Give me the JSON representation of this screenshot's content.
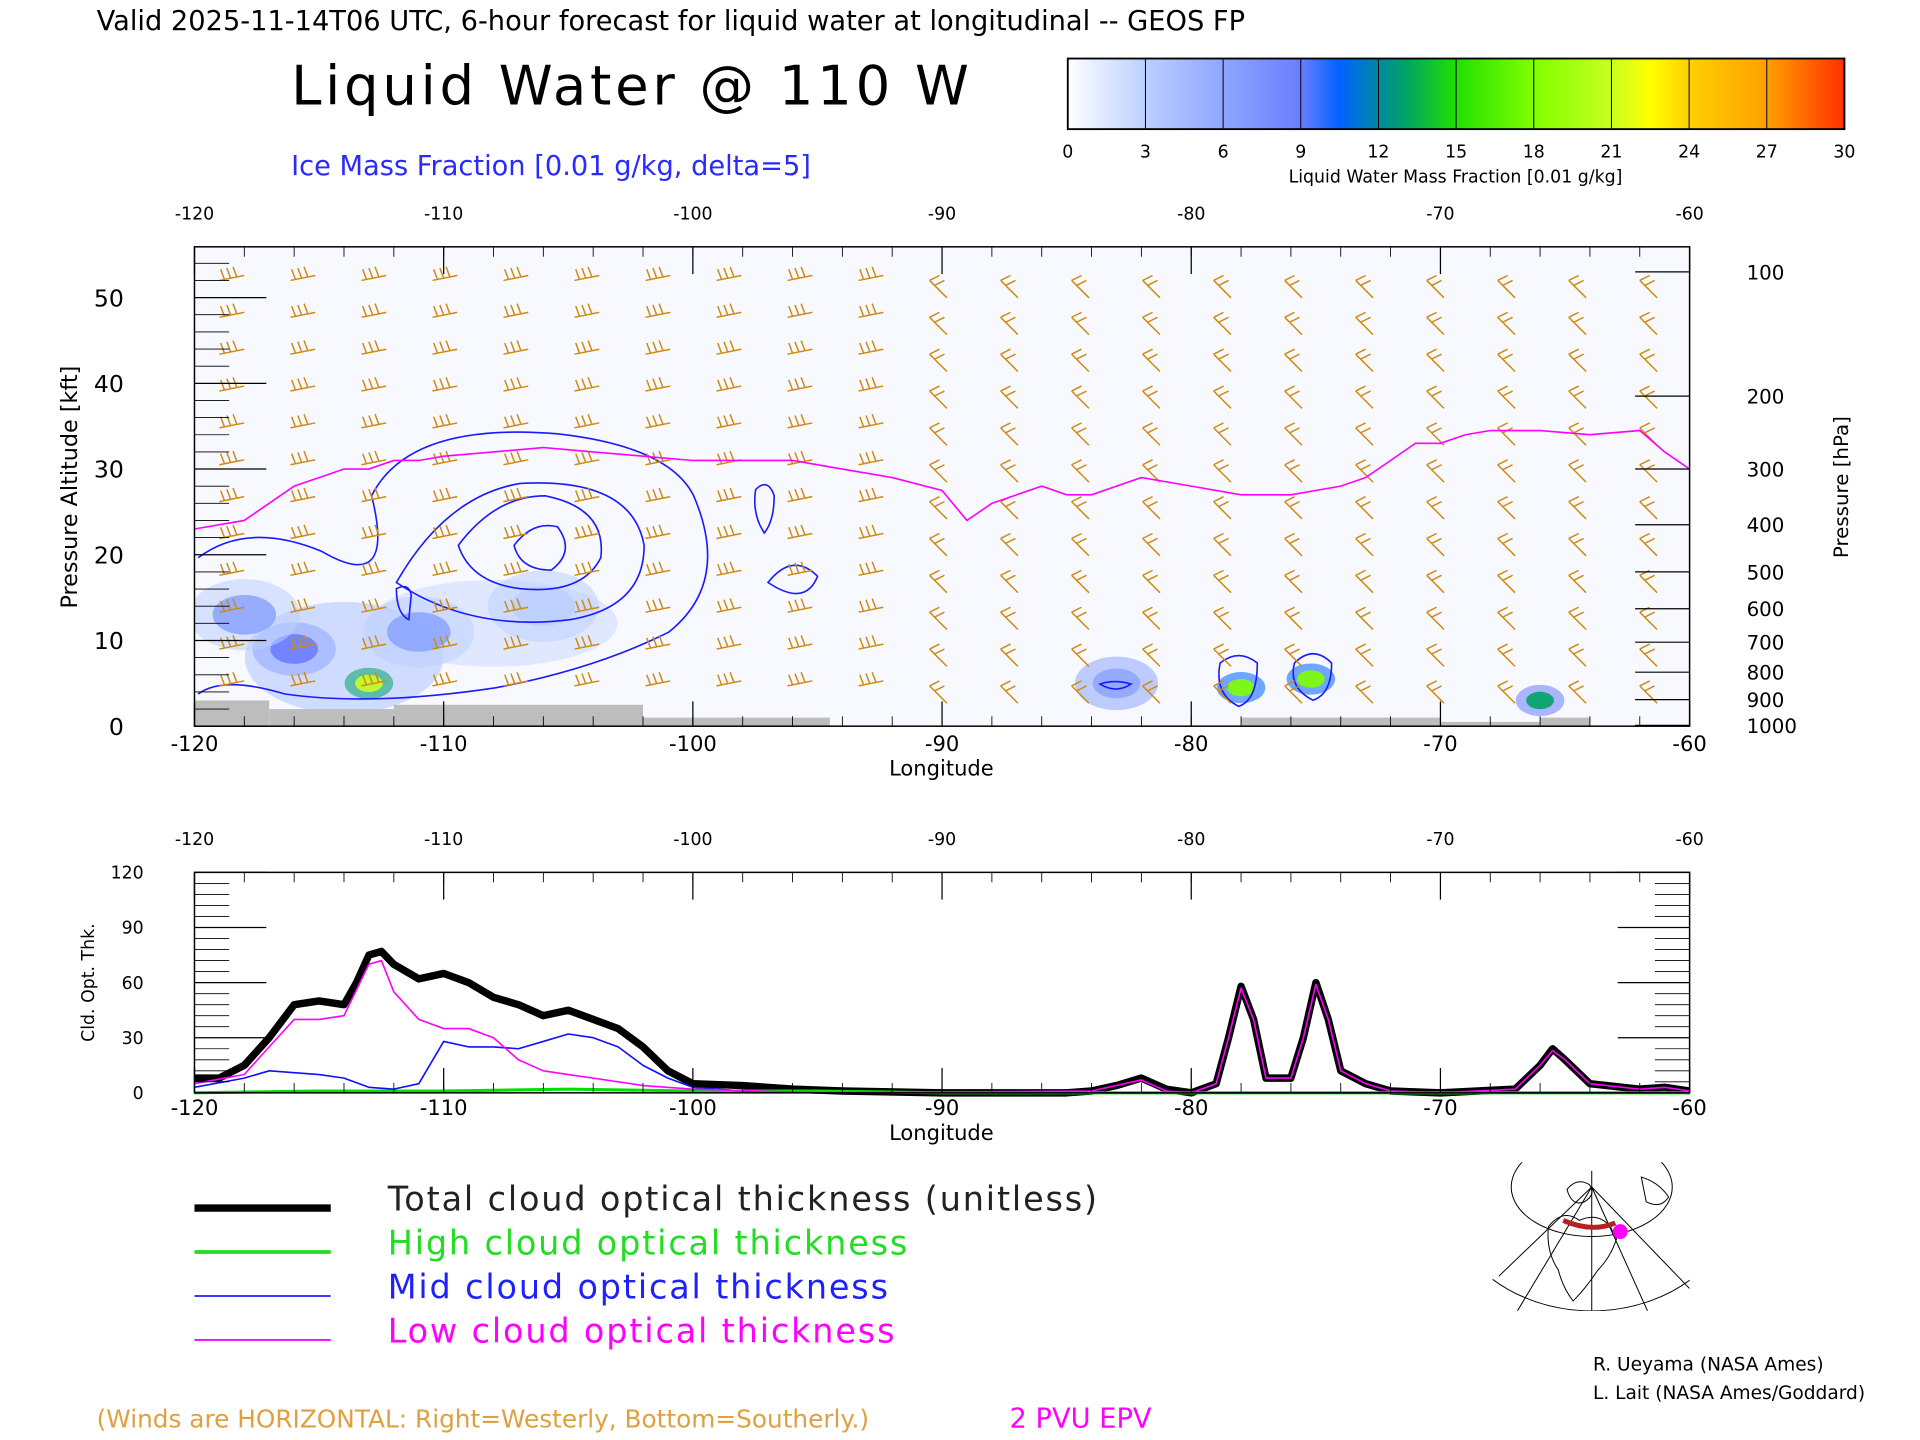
{
  "header": {
    "valid_line": "Valid 2025-11-14T06 UTC, 6-hour forecast for liquid water at longitudinal -- GEOS FP",
    "title": "Liquid Water @ 110 W",
    "ice_label": "Ice Mass Fraction [0.01 g/kg, delta=5]"
  },
  "colorbar": {
    "ticks": [
      "0",
      "3",
      "6",
      "9",
      "12",
      "15",
      "18",
      "21",
      "24",
      "27",
      "30"
    ],
    "label": "Liquid Water Mass Fraction [0.01 g/kg]",
    "stops": [
      {
        "v": 0,
        "c": "#ffffff"
      },
      {
        "v": 3,
        "c": "#bccfff"
      },
      {
        "v": 6,
        "c": "#8ea6ff"
      },
      {
        "v": 9,
        "c": "#6b7dff"
      },
      {
        "v": 10.5,
        "c": "#0062ff"
      },
      {
        "v": 13,
        "c": "#00a266"
      },
      {
        "v": 15,
        "c": "#22e000"
      },
      {
        "v": 18,
        "c": "#80ff00"
      },
      {
        "v": 21,
        "c": "#c8ff20"
      },
      {
        "v": 22.5,
        "c": "#ffff00"
      },
      {
        "v": 24,
        "c": "#ffd000"
      },
      {
        "v": 27,
        "c": "#ffa000"
      },
      {
        "v": 30,
        "c": "#ff3000"
      }
    ]
  },
  "chart_data": [
    {
      "type": "heatmap",
      "title": "Liquid Water @ 110 W",
      "xlabel": "Longitude",
      "ylabel": "Pressure Altitude [kft]",
      "y2label": "Pressure [hPa]",
      "xlim": [
        -120,
        -60
      ],
      "ylim": [
        0,
        55
      ],
      "xticks": [
        "-120",
        "-110",
        "-100",
        "-90",
        "-80",
        "-70",
        "-60"
      ],
      "yticks": [
        "0",
        "10",
        "20",
        "30",
        "40",
        "50"
      ],
      "pressure_ticks": [
        {
          "label": "100",
          "kft": 53
        },
        {
          "label": "200",
          "kft": 38.5
        },
        {
          "label": "300",
          "kft": 30
        },
        {
          "label": "400",
          "kft": 23.5
        },
        {
          "label": "500",
          "kft": 18
        },
        {
          "label": "600",
          "kft": 13.7
        },
        {
          "label": "700",
          "kft": 9.8
        },
        {
          "label": "800",
          "kft": 6.3
        },
        {
          "label": "900",
          "kft": 3.1
        },
        {
          "label": "1000",
          "kft": 0.1
        }
      ],
      "liquid_water_blobs": [
        {
          "lon": -113,
          "kft": 5,
          "value": 20
        },
        {
          "lon": -116,
          "kft": 9,
          "value": 7
        },
        {
          "lon": -118,
          "kft": 13,
          "value": 4
        },
        {
          "lon": -111,
          "kft": 11,
          "value": 5
        },
        {
          "lon": -106,
          "kft": 14,
          "value": 3
        },
        {
          "lon": -78,
          "kft": 4.5,
          "value": 17
        },
        {
          "lon": -75.2,
          "kft": 5.5,
          "value": 16
        },
        {
          "lon": -66,
          "kft": 3,
          "value": 13
        },
        {
          "lon": -83,
          "kft": 5,
          "value": 6
        }
      ],
      "epv_2pvu_line": {
        "lon": [
          -120,
          -118,
          -117,
          -116,
          -115,
          -114,
          -113,
          -112,
          -111,
          -110,
          -108,
          -106,
          -104,
          -102,
          -100,
          -98,
          -96,
          -94,
          -92,
          -90,
          -89,
          -88,
          -86,
          -85,
          -84,
          -82,
          -80,
          -78,
          -76,
          -74,
          -73,
          -72,
          -71,
          -70,
          -69,
          -68,
          -66,
          -64,
          -62,
          -61,
          -60
        ],
        "kft": [
          23,
          24,
          26,
          28,
          29,
          30,
          30,
          31,
          31,
          31.5,
          32,
          32.5,
          32,
          31.5,
          31,
          31,
          31,
          30,
          29,
          27.5,
          24,
          26,
          28,
          27,
          27,
          29,
          28,
          27,
          27,
          28,
          29,
          31,
          33,
          33,
          34,
          34.5,
          34.5,
          34,
          34.5,
          32,
          30
        ]
      },
      "ground_kft": [
        {
          "from": -120,
          "to": -117,
          "value": 3
        },
        {
          "from": -117,
          "to": -112,
          "value": 2
        },
        {
          "from": -112,
          "to": -102,
          "value": 2.5
        },
        {
          "from": -102,
          "to": -94.5,
          "value": 1
        },
        {
          "from": -78,
          "to": -70,
          "value": 1
        },
        {
          "from": -70,
          "to": -66,
          "value": 0.5
        },
        {
          "from": -66,
          "to": -64,
          "value": 1
        }
      ]
    },
    {
      "type": "line",
      "xlabel": "Longitude",
      "ylabel": "Cld. Opt. Thk.",
      "xlim": [
        -120,
        -60
      ],
      "ylim": [
        0,
        120
      ],
      "xticks": [
        "-120",
        "-110",
        "-100",
        "-90",
        "-80",
        "-70",
        "-60"
      ],
      "yticks": [
        "0",
        "30",
        "60",
        "90",
        "120"
      ],
      "series": [
        {
          "name": "Total cloud optical thickness (unitless)",
          "color": "#000000",
          "x": [
            -120,
            -119,
            -118,
            -117,
            -116,
            -115,
            -114,
            -113.5,
            -113,
            -112.5,
            -112,
            -111,
            -110,
            -109,
            -108,
            -107,
            -106,
            -105,
            -104,
            -103,
            -102,
            -101,
            -100,
            -98,
            -96,
            -94,
            -90,
            -85,
            -84,
            -83,
            -82,
            -81,
            -80,
            -79,
            -78.5,
            -78,
            -77.5,
            -77,
            -76,
            -75.5,
            -75,
            -74.5,
            -74,
            -73,
            -72,
            -70,
            -67,
            -66,
            -65.5,
            -65,
            -64,
            -62,
            -61,
            -60
          ],
          "y": [
            8,
            8,
            15,
            30,
            48,
            50,
            48,
            60,
            75,
            77,
            70,
            62,
            65,
            60,
            52,
            48,
            42,
            45,
            40,
            35,
            25,
            12,
            5,
            4,
            2,
            1,
            0,
            0,
            1,
            4,
            8,
            2,
            0,
            5,
            30,
            58,
            40,
            8,
            8,
            30,
            60,
            40,
            12,
            5,
            1,
            0,
            2,
            15,
            24,
            18,
            5,
            2,
            3,
            1
          ]
        },
        {
          "name": "High cloud optical thickness",
          "color": "#00e000",
          "x": [
            -120,
            -115,
            -110,
            -105,
            -100,
            -95,
            -90,
            -80,
            -70,
            -60
          ],
          "y": [
            0,
            1,
            1,
            2,
            1,
            1,
            0,
            0,
            0,
            0
          ]
        },
        {
          "name": "Mid cloud optical thickness",
          "color": "#1010ff",
          "x": [
            -120,
            -118,
            -117,
            -115,
            -114,
            -113,
            -112,
            -111,
            -110,
            -109,
            -108,
            -107,
            -106,
            -105,
            -104,
            -103,
            -102,
            -101,
            -100,
            -98,
            -95,
            -60
          ],
          "y": [
            3,
            8,
            12,
            10,
            8,
            3,
            2,
            5,
            28,
            25,
            25,
            24,
            28,
            32,
            30,
            25,
            15,
            8,
            3,
            1,
            0,
            0
          ]
        },
        {
          "name": "Low cloud optical thickness",
          "color": "#ff00ff",
          "x": [
            -120,
            -118,
            -117,
            -116,
            -115,
            -114,
            -113,
            -112.5,
            -112,
            -111,
            -110,
            -109,
            -108,
            -107,
            -106,
            -105,
            -104,
            -102,
            -100,
            -95,
            -84,
            -82,
            -81,
            -80,
            -79,
            -78.5,
            -78,
            -77.5,
            -77,
            -76,
            -75.5,
            -75,
            -74.5,
            -74,
            -73,
            -72,
            -70,
            -67,
            -66,
            -65.5,
            -65,
            -64,
            -62,
            -61,
            -60
          ],
          "y": [
            5,
            10,
            25,
            40,
            40,
            42,
            70,
            72,
            55,
            40,
            35,
            35,
            30,
            18,
            12,
            10,
            8,
            4,
            2,
            0,
            1,
            7,
            1,
            0,
            5,
            30,
            57,
            40,
            8,
            8,
            30,
            59,
            40,
            12,
            5,
            1,
            0,
            2,
            15,
            23,
            18,
            5,
            2,
            3,
            1
          ]
        }
      ]
    }
  ],
  "legend": {
    "items": [
      {
        "label": "Total cloud optical thickness (unitless)",
        "color": "#000000"
      },
      {
        "label": "High cloud optical thickness",
        "color": "#22dd22"
      },
      {
        "label": "Mid cloud optical thickness",
        "color": "#2020ff"
      },
      {
        "label": "Low cloud optical thickness",
        "color": "#ff00ff"
      }
    ]
  },
  "footer": {
    "winds_note": "(Winds are HORIZONTAL: Right=Westerly, Bottom=Southerly.)",
    "epv_label": "2 PVU EPV",
    "credit1": "R. Ueyama (NASA Ames)",
    "credit2": "L. Lait (NASA Ames/Goddard)"
  },
  "colors": {
    "wind": "#d08a10",
    "ice": "#1a1aff",
    "epv": "#ff00ff",
    "ground": "#bdbdbd",
    "track": "#b22222"
  }
}
